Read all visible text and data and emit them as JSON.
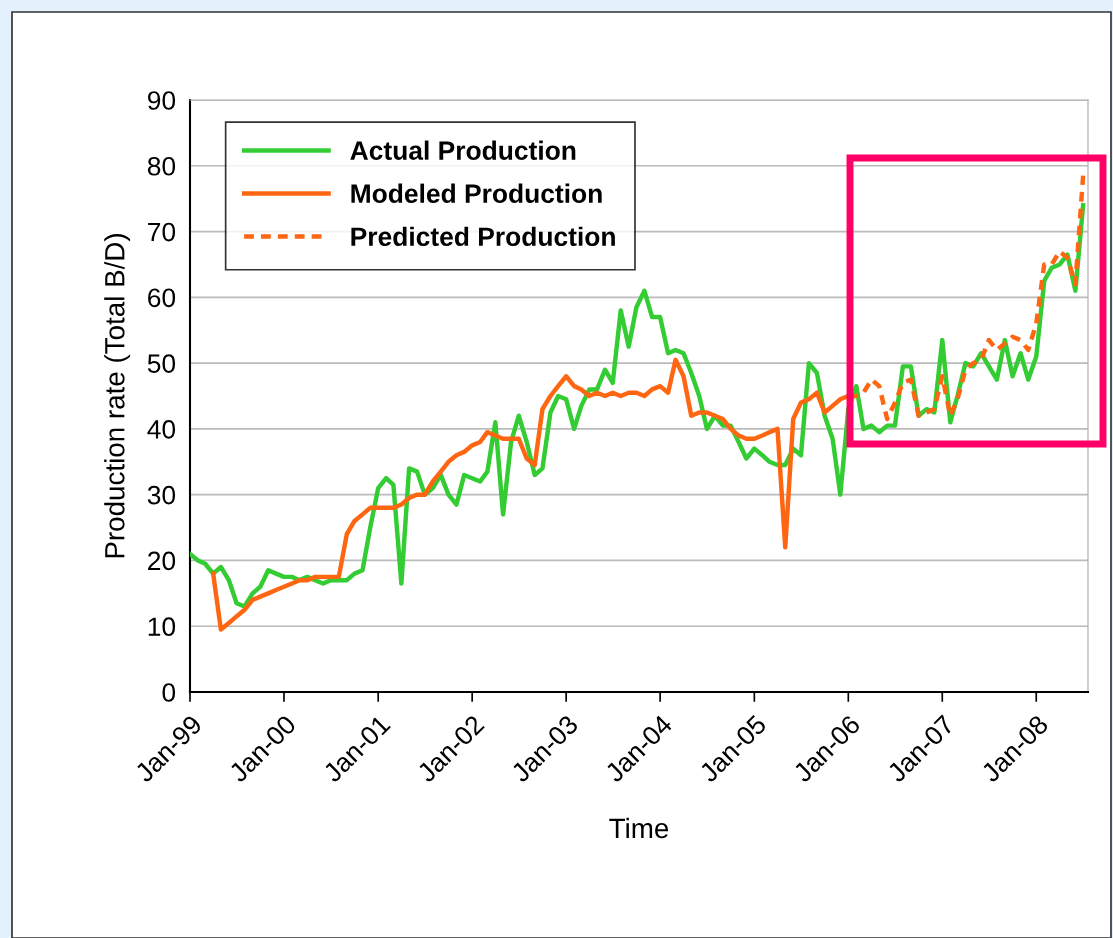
{
  "chart_data": {
    "type": "line",
    "xlabel": "Time",
    "ylabel": "Production rate (Total B/D)",
    "xlim": [
      "1999-01",
      "2008-07-20"
    ],
    "ylim": [
      0,
      90
    ],
    "yticks": [
      0,
      10,
      20,
      30,
      40,
      50,
      60,
      70,
      80,
      90
    ],
    "xticks": [
      {
        "value": "1999-01",
        "label": "Jan-99"
      },
      {
        "value": "2000-01",
        "label": "Jan-00"
      },
      {
        "value": "2001-01",
        "label": "Jan-01"
      },
      {
        "value": "2002-01",
        "label": "Jan-02"
      },
      {
        "value": "2003-01",
        "label": "Jan-03"
      },
      {
        "value": "2004-01",
        "label": "Jan-04"
      },
      {
        "value": "2005-01",
        "label": "Jan-05"
      },
      {
        "value": "2006-01",
        "label": "Jan-06"
      },
      {
        "value": "2007-01",
        "label": "Jan-07"
      },
      {
        "value": "2008-01",
        "label": "Jan-08"
      }
    ],
    "grid": "y",
    "legend": "top left",
    "marker": "none",
    "series": [
      {
        "name": "Actual Production",
        "color": "#33cc33",
        "line_style": "solid",
        "x": [
          "1999-01",
          "1999-02",
          "1999-03",
          "1999-04",
          "1999-05",
          "1999-06",
          "1999-07",
          "1999-08",
          "1999-09",
          "1999-10",
          "1999-11",
          "1999-12",
          "2000-01",
          "2000-02",
          "2000-03",
          "2000-04",
          "2000-05",
          "2000-06",
          "2000-07",
          "2000-08",
          "2000-09",
          "2000-10",
          "2000-11",
          "2000-12",
          "2001-01",
          "2001-02",
          "2001-03",
          "2001-04",
          "2001-05",
          "2001-06",
          "2001-07",
          "2001-08",
          "2001-09",
          "2001-10",
          "2001-11",
          "2001-12",
          "2002-01",
          "2002-02",
          "2002-03",
          "2002-04",
          "2002-05",
          "2002-06",
          "2002-07",
          "2002-08",
          "2002-09",
          "2002-10",
          "2002-11",
          "2002-12",
          "2003-01",
          "2003-02",
          "2003-03",
          "2003-04",
          "2003-05",
          "2003-06",
          "2003-07",
          "2003-08",
          "2003-09",
          "2003-10",
          "2003-11",
          "2003-12",
          "2004-01",
          "2004-02",
          "2004-03",
          "2004-04",
          "2004-05",
          "2004-06",
          "2004-07",
          "2004-08",
          "2004-09",
          "2004-10",
          "2004-11",
          "2004-12",
          "2005-01",
          "2005-02",
          "2005-03",
          "2005-04",
          "2005-05",
          "2005-06",
          "2005-07",
          "2005-08",
          "2005-09",
          "2005-10",
          "2005-11",
          "2005-12",
          "2006-01",
          "2006-02",
          "2006-03",
          "2006-04",
          "2006-05",
          "2006-06",
          "2006-07",
          "2006-08",
          "2006-09",
          "2006-10",
          "2006-11",
          "2006-12",
          "2007-01",
          "2007-02",
          "2007-03",
          "2007-04",
          "2007-05",
          "2007-06",
          "2007-07",
          "2007-08",
          "2007-09",
          "2007-10",
          "2007-11",
          "2007-12",
          "2008-01",
          "2008-02",
          "2008-03",
          "2008-04",
          "2008-05",
          "2008-06",
          "2008-07"
        ],
        "values": [
          21,
          20,
          19.5,
          18,
          19,
          17,
          13.5,
          13,
          15,
          16,
          18.5,
          18,
          17.5,
          17.5,
          17,
          17.5,
          17,
          16.5,
          17,
          17,
          17,
          18,
          18.5,
          25,
          31,
          32.5,
          31.5,
          16.5,
          34,
          33.5,
          30,
          31,
          33,
          30,
          28.5,
          33,
          32.5,
          32,
          33.5,
          41,
          27,
          38,
          42,
          38,
          33,
          34,
          42.5,
          45,
          44.5,
          40,
          43.5,
          46,
          46,
          49,
          47,
          58,
          52.5,
          58.5,
          61,
          57,
          57,
          51.5,
          52,
          51.5,
          48.5,
          45,
          40,
          42,
          40.5,
          40.5,
          38,
          35.5,
          37,
          36,
          35,
          34.5,
          34.5,
          37,
          36,
          50,
          48.5,
          42,
          38.5,
          30,
          43,
          46.5,
          40,
          40.5,
          39.5,
          40.5,
          40.5,
          49.5,
          49.5,
          42,
          43,
          42.5,
          53.5,
          41,
          45,
          50,
          49.5,
          51.5,
          49.5,
          47.5,
          53.5,
          48,
          51.5,
          47.5,
          51,
          62.5,
          64.5,
          65,
          66.5,
          61,
          74
        ]
      },
      {
        "name": "Modeled Production",
        "color": "#ff6611",
        "line_style": "solid",
        "x": [
          "1999-04",
          "1999-05",
          "1999-06",
          "1999-07",
          "1999-08",
          "1999-09",
          "1999-10",
          "1999-11",
          "1999-12",
          "2000-01",
          "2000-02",
          "2000-03",
          "2000-04",
          "2000-05",
          "2000-06",
          "2000-07",
          "2000-08",
          "2000-09",
          "2000-10",
          "2000-11",
          "2000-12",
          "2001-01",
          "2001-02",
          "2001-03",
          "2001-04",
          "2001-05",
          "2001-06",
          "2001-07",
          "2001-08",
          "2001-09",
          "2001-10",
          "2001-11",
          "2001-12",
          "2002-01",
          "2002-02",
          "2002-03",
          "2002-04",
          "2002-05",
          "2002-06",
          "2002-07",
          "2002-08",
          "2002-09",
          "2002-10",
          "2002-11",
          "2002-12",
          "2003-01",
          "2003-02",
          "2003-03",
          "2003-04",
          "2003-05",
          "2003-06",
          "2003-07",
          "2003-08",
          "2003-09",
          "2003-10",
          "2003-11",
          "2003-12",
          "2004-01",
          "2004-02",
          "2004-03",
          "2004-04",
          "2004-05",
          "2004-06",
          "2004-07",
          "2004-08",
          "2004-09",
          "2004-10",
          "2004-11",
          "2004-12",
          "2005-01",
          "2005-02",
          "2005-03",
          "2005-04",
          "2005-05",
          "2005-06",
          "2005-07",
          "2005-08",
          "2005-09",
          "2005-10",
          "2005-11",
          "2005-12",
          "2006-01"
        ],
        "values": [
          18,
          9.5,
          10.5,
          11.5,
          12.5,
          14,
          14.5,
          15,
          15.5,
          16,
          16.5,
          17,
          17,
          17.5,
          17.5,
          17.5,
          17.5,
          24,
          26,
          27,
          28,
          28,
          28,
          28,
          28.5,
          29.5,
          30,
          30,
          32,
          33.5,
          35,
          36,
          36.5,
          37.5,
          38,
          39.5,
          39,
          38.5,
          38.5,
          38.5,
          35.5,
          34.5,
          43,
          45,
          46.5,
          48,
          46.5,
          46,
          45,
          45.5,
          45,
          45.5,
          45,
          45.5,
          45.5,
          45,
          46,
          46.5,
          45.5,
          50.5,
          48,
          42,
          42.5,
          42.5,
          42,
          41.5,
          40,
          39,
          38.5,
          38.5,
          39,
          39.5,
          40,
          22,
          41.5,
          44,
          44.5,
          45.5,
          42.5,
          43.5,
          44.5,
          45
        ]
      },
      {
        "name": "Predicted Production",
        "color": "#ff6611",
        "line_style": "dashed",
        "x": [
          "2006-01",
          "2006-02",
          "2006-03",
          "2006-04",
          "2006-05",
          "2006-06",
          "2006-07",
          "2006-08",
          "2006-09",
          "2006-10",
          "2006-11",
          "2006-12",
          "2007-01",
          "2007-02",
          "2007-03",
          "2007-04",
          "2007-05",
          "2007-06",
          "2007-07",
          "2007-08",
          "2007-09",
          "2007-10",
          "2007-11",
          "2007-12",
          "2008-01",
          "2008-02",
          "2008-03",
          "2008-04",
          "2008-05",
          "2008-06",
          "2008-07"
        ],
        "values": [
          45,
          45,
          45.5,
          47.5,
          46.5,
          41.5,
          44,
          47,
          47.5,
          42,
          42.5,
          43,
          48,
          42,
          44.5,
          49,
          50,
          50.5,
          53.5,
          52,
          53,
          54,
          53.5,
          52,
          56,
          65,
          65,
          67,
          66,
          62,
          78.5
        ]
      }
    ]
  }
}
